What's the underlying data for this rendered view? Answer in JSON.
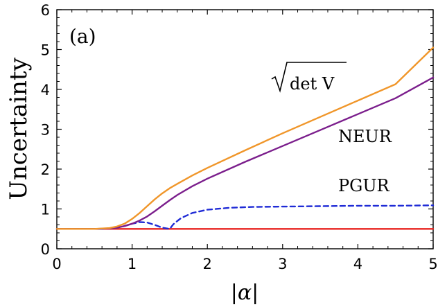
{
  "chart_data": {
    "type": "line",
    "title": "",
    "panel_label": "(a)",
    "xlabel": "|α|",
    "ylabel": "Uncertainty",
    "xlim": [
      0,
      5
    ],
    "ylim": [
      0,
      6
    ],
    "xticks": [
      0,
      1,
      2,
      3,
      4,
      5
    ],
    "yticks": [
      0,
      1,
      2,
      3,
      4,
      5,
      6
    ],
    "grid": false,
    "legend": "none",
    "series": [
      {
        "name": "√det V",
        "label_text": "det V",
        "color": "#f0962a",
        "dash": "solid",
        "x": [
          0,
          0.5,
          0.7,
          0.8,
          0.9,
          1.0,
          1.1,
          1.2,
          1.3,
          1.4,
          1.5,
          1.6,
          1.8,
          2.0,
          2.5,
          3.0,
          3.5,
          4.0,
          4.5,
          5.0
        ],
        "y": [
          0.5,
          0.5,
          0.52,
          0.56,
          0.63,
          0.75,
          0.9,
          1.07,
          1.24,
          1.39,
          1.52,
          1.63,
          1.84,
          2.03,
          2.47,
          2.9,
          3.31,
          3.72,
          4.13,
          5.05
        ]
      },
      {
        "name": "NEUR",
        "label_text": "NEUR",
        "color": "#7b1e8c",
        "dash": "solid",
        "x": [
          0,
          0.5,
          0.7,
          0.8,
          0.9,
          1.0,
          1.1,
          1.2,
          1.3,
          1.4,
          1.5,
          1.6,
          1.8,
          2.0,
          2.5,
          3.0,
          3.5,
          4.0,
          4.5,
          5.0
        ],
        "y": [
          0.5,
          0.5,
          0.51,
          0.53,
          0.57,
          0.63,
          0.71,
          0.81,
          0.94,
          1.08,
          1.22,
          1.35,
          1.57,
          1.76,
          2.18,
          2.58,
          2.98,
          3.38,
          3.78,
          4.3
        ]
      },
      {
        "name": "PGUR",
        "label_text": "PGUR",
        "color": "#1f2bd6",
        "dash": "dashed",
        "x": [
          0,
          0.6,
          0.8,
          0.9,
          1.0,
          1.1,
          1.2,
          1.3,
          1.4,
          1.5,
          1.55,
          1.65,
          1.8,
          2.0,
          2.3,
          2.6,
          3.0,
          3.5,
          4.0,
          4.5,
          5.0
        ],
        "y": [
          0.5,
          0.5,
          0.53,
          0.57,
          0.63,
          0.67,
          0.66,
          0.6,
          0.53,
          0.5,
          0.62,
          0.77,
          0.9,
          0.98,
          1.03,
          1.05,
          1.06,
          1.07,
          1.08,
          1.08,
          1.09
        ]
      },
      {
        "name": "",
        "color": "#e8231f",
        "dash": "solid",
        "x": [
          0,
          5
        ],
        "y": [
          0.5,
          0.5
        ]
      }
    ]
  }
}
